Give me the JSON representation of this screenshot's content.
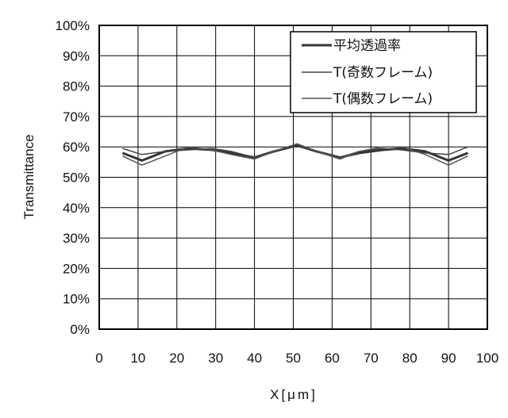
{
  "chart_data": {
    "type": "line",
    "xlabel": "X[μm]",
    "ylabel": "Transmittance",
    "xlim": [
      0,
      100
    ],
    "ylim": [
      0,
      100
    ],
    "x_ticks": [
      "0",
      "10",
      "20",
      "30",
      "40",
      "50",
      "60",
      "70",
      "80",
      "90",
      "100"
    ],
    "y_ticks": [
      "0%",
      "10%",
      "20%",
      "30%",
      "40%",
      "50%",
      "60%",
      "70%",
      "80%",
      "90%",
      "100%"
    ],
    "grid": true,
    "legend_position": "top-right",
    "series": [
      {
        "name": "平均透過率",
        "color": "#333333",
        "width": 3,
        "x": [
          6,
          11,
          17,
          23,
          29,
          34,
          40,
          45,
          51,
          56,
          62,
          67,
          73,
          78,
          84,
          90,
          95
        ],
        "y": [
          58,
          55.5,
          58.5,
          59.5,
          59,
          58,
          56.5,
          58.5,
          60.5,
          58.5,
          56.5,
          58,
          59,
          59.5,
          58.5,
          55.5,
          58
        ]
      },
      {
        "name": "T(奇数フレーム)",
        "color": "#444444",
        "width": 1.5,
        "x": [
          6,
          11,
          17,
          23,
          29,
          34,
          40,
          45,
          51,
          56,
          62,
          67,
          73,
          78,
          84,
          90,
          95
        ],
        "y": [
          59.5,
          57.5,
          58.5,
          59,
          59.5,
          58.5,
          56.5,
          58.5,
          61,
          58.5,
          56.5,
          58.5,
          59.5,
          59,
          58,
          57.5,
          60
        ]
      },
      {
        "name": "T(偶数フレーム)",
        "color": "#555555",
        "width": 1.5,
        "x": [
          6,
          11,
          17,
          23,
          29,
          34,
          40,
          45,
          51,
          56,
          62,
          67,
          73,
          78,
          84,
          90,
          95
        ],
        "y": [
          57,
          54,
          57,
          60,
          59,
          57.5,
          56,
          58.5,
          61,
          58.5,
          56,
          58.5,
          60,
          60,
          57.5,
          54,
          57
        ]
      }
    ]
  }
}
